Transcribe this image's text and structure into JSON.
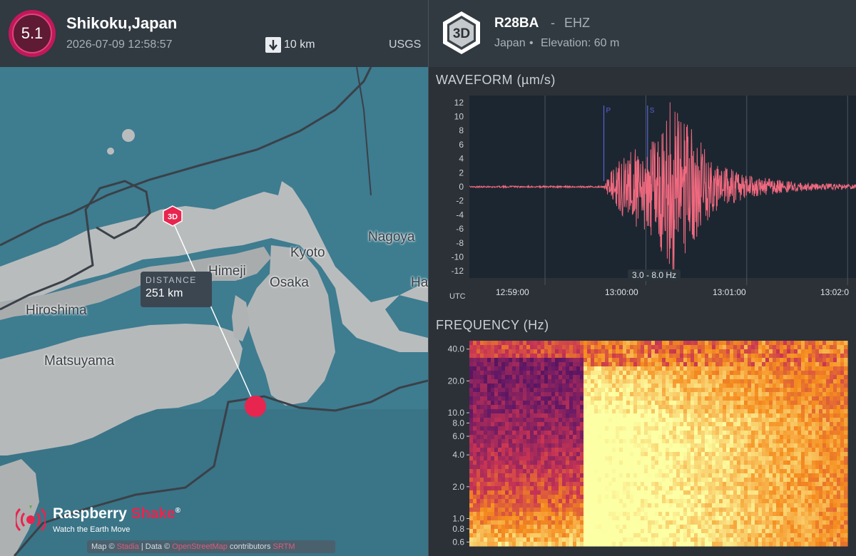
{
  "event": {
    "magnitude": "5.1",
    "place": "Shikoku,Japan",
    "time": "2026-07-09 12:58:57",
    "depth": "10 km",
    "source": "USGS"
  },
  "map": {
    "places": [
      "Nagoya",
      "Kyoto",
      "Himeji",
      "Osaka",
      "Hiroshima",
      "Matsuyama",
      "Ha"
    ],
    "distance_label": "DISTANCE",
    "distance_value": "251 km",
    "station_marker_label": "3D",
    "brand_main": "Raspberry",
    "brand_accent": "Shake",
    "brand_mark": "®",
    "brand_tagline": "Watch the Earth Move",
    "attribution": {
      "map_prefix": "Map ©",
      "map_link": "Stadia",
      "data_prefix": "| Data ©",
      "data_link": "OpenStreetMap",
      "suffix": "contributors",
      "extra_link": "SRTM"
    }
  },
  "station": {
    "badge": "3D",
    "code": "R28BA",
    "separator": "-",
    "channel": "EHZ",
    "country": "Japan",
    "bullet": "•",
    "elevation": "Elevation: 60 m"
  },
  "waveform": {
    "title": "WAVEFORM (µm/s)",
    "bandpass": "3.0 - 8.0 Hz",
    "utc_label": "UTC",
    "time_ticks": [
      "12:59:00",
      "13:00:00",
      "13:01:00",
      "13:02:0"
    ],
    "y_ticks": [
      "12",
      "10",
      "8",
      "6",
      "4",
      "2",
      "0",
      "-2",
      "-4",
      "-6",
      "-8",
      "-10",
      "-12"
    ],
    "phase_labels": [
      "P",
      "S"
    ],
    "colors": {
      "trace": "#f0697f",
      "background": "#1c2630",
      "phase_line": "#5a63d6"
    }
  },
  "frequency": {
    "title": "FREQUENCY (Hz)",
    "y_ticks": [
      "40.0",
      "20.0",
      "10.0",
      "8.0",
      "6.0",
      "4.0",
      "2.0",
      "1.0",
      "0.8",
      "0.6"
    ],
    "colors": {
      "low": "#2b0a3d",
      "mid": "#c2205a",
      "high": "#fcffa4"
    }
  },
  "chart_data": {
    "type": "line",
    "title": "WAVEFORM (µm/s)",
    "xlabel": "UTC",
    "ylabel": "",
    "x_range": [
      "12:58:15",
      "13:02:05"
    ],
    "ylim": [
      -13,
      13
    ],
    "series": [
      {
        "x": [
          "12:58:15",
          "12:59:00",
          "12:59:35",
          "12:59:40",
          "12:59:48",
          "12:59:55",
          "13:00:05",
          "13:00:12",
          "13:00:15",
          "13:00:20",
          "13:00:28",
          "13:00:40",
          "13:01:00",
          "13:01:30",
          "13:02:05"
        ],
        "values": [
          0,
          0,
          0,
          2.5,
          4.5,
          6,
          8,
          10,
          13,
          11,
          8,
          3.5,
          1.5,
          0.5,
          0.2
        ]
      }
    ],
    "phase_markers": [
      {
        "label": "P",
        "time": "12:59:35"
      },
      {
        "label": "S",
        "time": "13:00:01"
      }
    ]
  }
}
